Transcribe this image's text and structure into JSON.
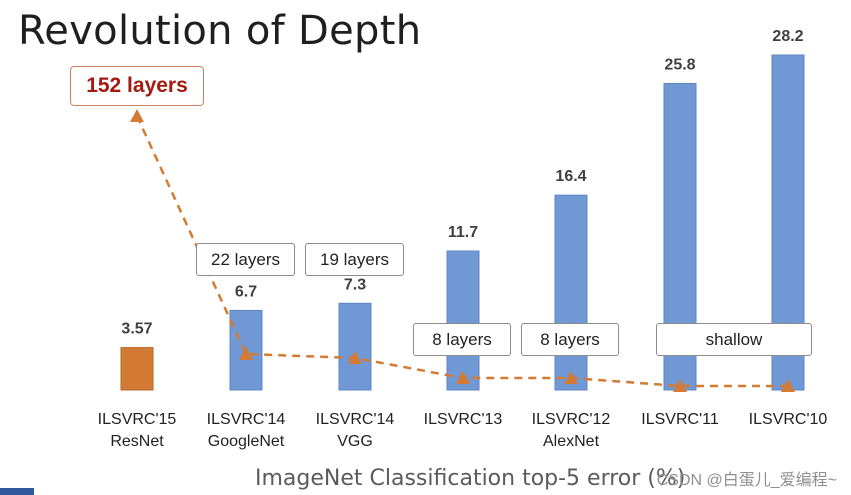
{
  "slide": {
    "title": "Revolution of Depth",
    "caption": "ImageNet Classification top-5 error (%)",
    "watermark": "CSDN @白蛋儿_爱编程~"
  },
  "callouts": {
    "highlight": "152 layers",
    "googlenet": "22 layers",
    "vgg": "19 layers",
    "ilsvrc13": "8 layers",
    "alexnet": "8 layers",
    "shallow": "shallow"
  },
  "colors": {
    "resnet_bar": "#d37b34",
    "other_bars": "#7098d4",
    "trend_line": "#d37b34",
    "highlight_text": "#a31a10"
  },
  "chart_data": {
    "type": "bar",
    "categories": [
      "ILSVRC'15",
      "ILSVRC'14",
      "ILSVRC'14",
      "ILSVRC'13",
      "ILSVRC'12",
      "ILSVRC'11",
      "ILSVRC'10"
    ],
    "sublabels": [
      "ResNet",
      "GoogleNet",
      "VGG",
      "",
      "AlexNet",
      "",
      ""
    ],
    "values": [
      3.57,
      6.7,
      7.3,
      11.7,
      16.4,
      25.8,
      28.2
    ],
    "value_labels": [
      "3.57",
      "6.7",
      "7.3",
      "11.7",
      "16.4",
      "25.8",
      "28.2"
    ],
    "title": "Revolution of Depth",
    "xlabel": "ImageNet Classification top-5 error (%)",
    "ylabel": "",
    "ylim": [
      0,
      28.2
    ],
    "grid": false,
    "legend": "none",
    "overlay_trend": {
      "type": "line",
      "style": "dashed",
      "marker": "triangle",
      "note": "depth trend across entries, rising to 152 layers"
    }
  }
}
